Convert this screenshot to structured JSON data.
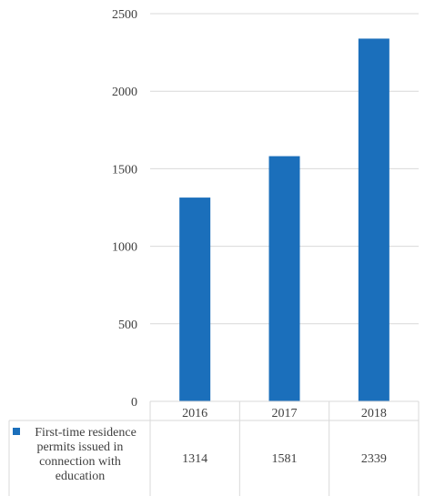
{
  "chart_data": {
    "type": "bar",
    "title": "",
    "xlabel": "",
    "ylabel": "",
    "categories": [
      "2016",
      "2017",
      "2018"
    ],
    "series": [
      {
        "name": "First-time residence permits issued in connection with education",
        "name_lines": [
          "First-time residence",
          "permits issued in",
          "connection with",
          "education"
        ],
        "values": [
          1314,
          1581,
          2339
        ],
        "value_labels": [
          "1314",
          "1581",
          "2339"
        ],
        "color": "#1b6fbb"
      }
    ],
    "ylim": [
      0,
      2500
    ],
    "y_ticks": [
      0,
      500,
      1000,
      1500,
      2000,
      2500
    ],
    "y_tick_labels": [
      "0",
      "500",
      "1000",
      "1500",
      "2000",
      "2500"
    ],
    "grid": "horizontal",
    "legend": "data-table-left",
    "gridline_color": "#d9d9d9",
    "text_color": "#404040"
  }
}
